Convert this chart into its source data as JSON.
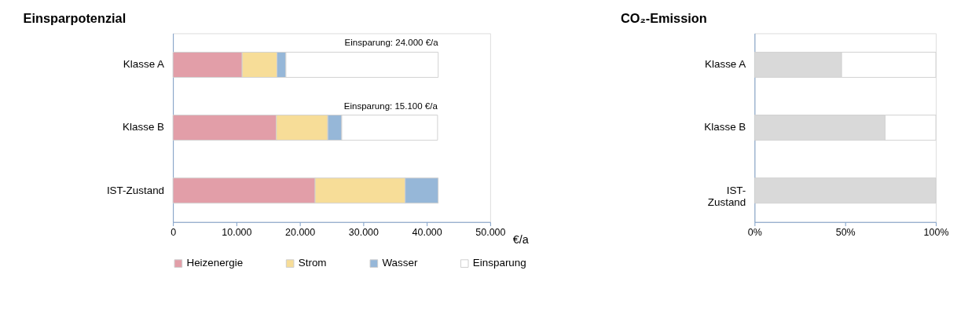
{
  "chart_data": [
    {
      "type": "bar",
      "title": "Einsparpotenzial",
      "orientation": "horizontal",
      "stacked": true,
      "categories": [
        "Klasse A",
        "Klasse B",
        "IST-Zustand"
      ],
      "series": [
        {
          "name": "Heizenergie",
          "color": "#e29ea8",
          "values": [
            10900,
            16300,
            22400
          ]
        },
        {
          "name": "Strom",
          "color": "#f7dd98",
          "values": [
            5500,
            8100,
            14200
          ]
        },
        {
          "name": "Wasser",
          "color": "#96b7d8",
          "values": [
            1400,
            2200,
            5200
          ]
        },
        {
          "name": "Einsparung",
          "color": "#ffffff",
          "values": [
            24000,
            15100,
            null
          ]
        }
      ],
      "xlim": [
        0,
        50000
      ],
      "xticks": [
        0,
        {
          "value": 10000,
          "label": "10.000"
        },
        {
          "value": 20000,
          "label": "20.000"
        },
        {
          "value": 30000,
          "label": "30.000"
        },
        {
          "value": 40000,
          "label": "40.000"
        },
        {
          "value": 50000,
          "label": "50.000"
        }
      ],
      "xlabel": "€/a",
      "legend": "bottom",
      "grid": false,
      "annotations": [
        {
          "text": "Einsparung: 24.000 €/a",
          "x": 41800,
          "y": "Klasse A"
        },
        {
          "text": "Einsparung: 15.100 €/a",
          "x": 41700,
          "y": "Klasse B"
        }
      ]
    },
    {
      "type": "bar",
      "title": "CO₂-Emission",
      "orientation": "horizontal",
      "stacked": true,
      "categories": [
        "Klasse A",
        "Klasse B",
        "IST-\nZustand"
      ],
      "series": [
        {
          "color": "#d9d9d9",
          "values": [
            48,
            72,
            100
          ]
        },
        {
          "color": "#ffffff",
          "values": [
            52,
            28,
            null
          ]
        }
      ],
      "xlim": [
        0,
        100
      ],
      "xticks": [
        {
          "value": 0,
          "label": "0%"
        },
        {
          "value": 50,
          "label": "50%"
        },
        {
          "value": 100,
          "label": "100%"
        }
      ],
      "legend": false,
      "grid": false
    }
  ]
}
